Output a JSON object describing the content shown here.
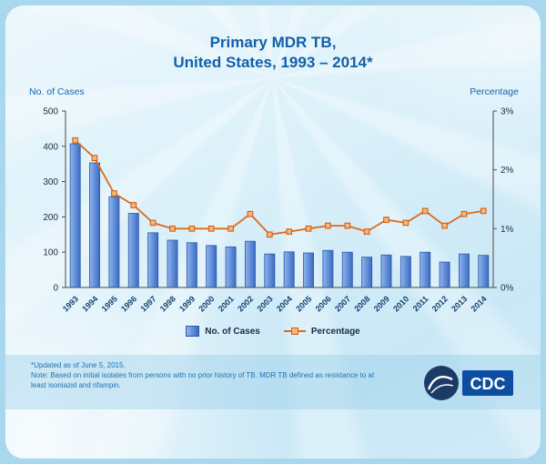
{
  "title": {
    "line1": "Primary MDR TB,",
    "line2": "United States, 1993 – 2014*"
  },
  "axes": {
    "left_label": "No. of Cases",
    "right_label": "Percentage"
  },
  "legend": {
    "cases_label": "No. of Cases",
    "percentage_label": "Percentage"
  },
  "footer": {
    "updated": "*Updated as of June 5, 2015.",
    "note": "Note: Based on initial isolates from persons with no prior history of TB. MDR TB defined as resistance to at least isoniazid and rifampin."
  },
  "logo": {
    "label": "CDC"
  },
  "colors": {
    "title_blue": "#1160a8",
    "bar_fill_light": "#8fb4ee",
    "bar_fill_dark": "#3a6cc4",
    "bar_stroke": "#2a59a8",
    "line_orange": "#dc6a1c",
    "marker_fill": "#f6b87a",
    "marker_stroke": "#d05f15",
    "tick_text": "#20304a",
    "year_text": "#14406e",
    "axis_line": "#4a4a4a"
  },
  "chart_data": {
    "type": "bar+line",
    "title": "Primary MDR TB, United States, 1993 – 2014*",
    "categories": [
      "1993",
      "1994",
      "1995",
      "1996",
      "1997",
      "1998",
      "1999",
      "2000",
      "2001",
      "2002",
      "2003",
      "2004",
      "2005",
      "2006",
      "2007",
      "2008",
      "2009",
      "2010",
      "2011",
      "2012",
      "2013",
      "2014"
    ],
    "series": [
      {
        "name": "No. of Cases",
        "type": "bar",
        "axis": "left",
        "values": [
          407,
          353,
          257,
          210,
          155,
          134,
          127,
          119,
          115,
          131,
          95,
          101,
          98,
          105,
          100,
          86,
          92,
          88,
          100,
          72,
          95,
          91
        ]
      },
      {
        "name": "Percentage",
        "type": "line",
        "axis": "right",
        "values": [
          2.5,
          2.2,
          1.6,
          1.4,
          1.1,
          1.0,
          1.0,
          1.0,
          1.0,
          1.25,
          0.9,
          0.95,
          1.0,
          1.05,
          1.05,
          0.95,
          1.15,
          1.1,
          1.3,
          1.05,
          1.25,
          1.3
        ]
      }
    ],
    "left_axis": {
      "label": "No. of Cases",
      "min": 0,
      "max": 500,
      "ticks": [
        0,
        100,
        200,
        300,
        400,
        500
      ]
    },
    "right_axis": {
      "label": "Percentage",
      "min": 0,
      "max": 3,
      "tick_values": [
        0,
        1,
        2,
        3
      ],
      "tick_labels": [
        "0%",
        "1%",
        "2%",
        "3%"
      ]
    },
    "grid": false,
    "legend_position": "bottom"
  }
}
